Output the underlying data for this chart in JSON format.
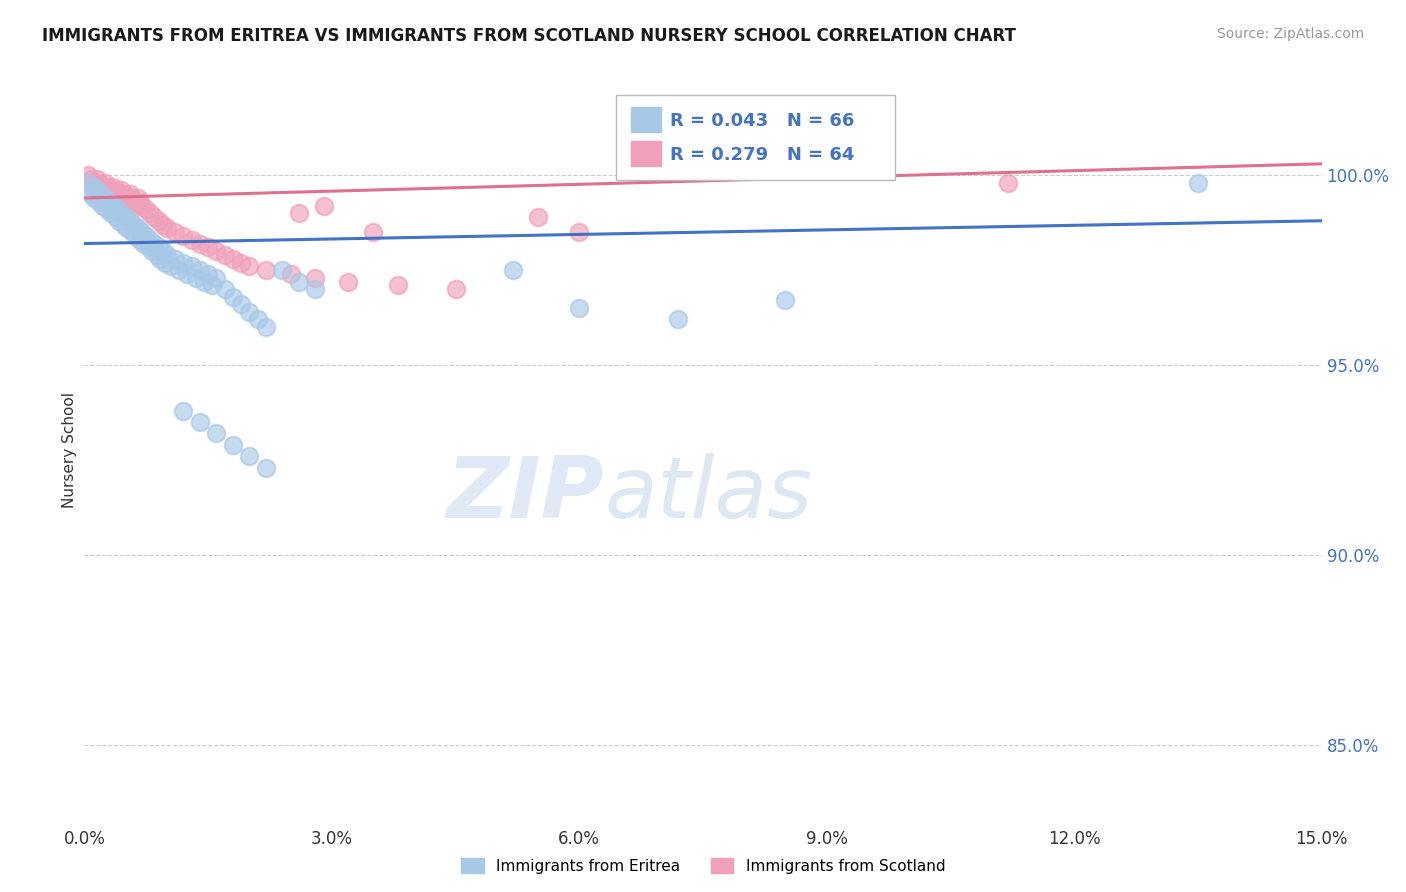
{
  "title": "IMMIGRANTS FROM ERITREA VS IMMIGRANTS FROM SCOTLAND NURSERY SCHOOL CORRELATION CHART",
  "source": "Source: ZipAtlas.com",
  "ylabel": "Nursery School",
  "xlim": [
    0.0,
    15.0
  ],
  "ylim": [
    83.0,
    102.5
  ],
  "yticks": [
    85.0,
    90.0,
    95.0,
    100.0
  ],
  "ytick_labels": [
    "85.0%",
    "90.0%",
    "95.0%",
    "100.0%"
  ],
  "xticks": [
    0.0,
    3.0,
    6.0,
    9.0,
    12.0,
    15.0
  ],
  "xtick_labels": [
    "0.0%",
    "3.0%",
    "6.0%",
    "9.0%",
    "12.0%",
    "15.0%"
  ],
  "blue_color": "#A8C8E8",
  "pink_color": "#F0A0B8",
  "blue_line_color": "#4472C4",
  "pink_line_color": "#E07090",
  "legend_blue_R": "0.043",
  "legend_blue_N": "66",
  "legend_pink_R": "0.279",
  "legend_pink_N": "64",
  "legend_label_blue": "Immigrants from Eritrea",
  "legend_label_pink": "Immigrants from Scotland",
  "watermark_ZIP": "ZIP",
  "watermark_atlas": "atlas",
  "blue_x": [
    0.05,
    0.08,
    0.1,
    0.12,
    0.15,
    0.18,
    0.2,
    0.22,
    0.25,
    0.28,
    0.3,
    0.32,
    0.35,
    0.38,
    0.4,
    0.42,
    0.45,
    0.48,
    0.5,
    0.52,
    0.55,
    0.58,
    0.6,
    0.62,
    0.65,
    0.68,
    0.7,
    0.72,
    0.75,
    0.78,
    0.8,
    0.82,
    0.85,
    0.88,
    0.9,
    0.92,
    0.95,
    0.98,
    1.0,
    1.05,
    1.1,
    1.15,
    1.2,
    1.25,
    1.3,
    1.35,
    1.4,
    1.45,
    1.5,
    1.55,
    1.6,
    1.7,
    1.8,
    1.9,
    2.0,
    2.1,
    2.2,
    2.4,
    2.6,
    2.8,
    1.2,
    1.4,
    1.6,
    1.8,
    2.0,
    2.2,
    5.2,
    6.0,
    7.2,
    8.5,
    13.5
  ],
  "blue_y": [
    99.8,
    99.5,
    99.7,
    99.4,
    99.6,
    99.3,
    99.5,
    99.2,
    99.4,
    99.1,
    99.3,
    99.0,
    99.2,
    98.9,
    99.1,
    98.8,
    99.0,
    98.7,
    98.9,
    98.6,
    98.8,
    98.5,
    98.7,
    98.4,
    98.6,
    98.3,
    98.5,
    98.2,
    98.4,
    98.1,
    98.3,
    98.0,
    98.2,
    97.9,
    98.1,
    97.8,
    98.0,
    97.7,
    97.9,
    97.6,
    97.8,
    97.5,
    97.7,
    97.4,
    97.6,
    97.3,
    97.5,
    97.2,
    97.4,
    97.1,
    97.3,
    97.0,
    96.8,
    96.6,
    96.4,
    96.2,
    96.0,
    97.5,
    97.2,
    97.0,
    93.8,
    93.5,
    93.2,
    92.9,
    92.6,
    92.3,
    97.5,
    96.5,
    96.2,
    96.7,
    99.8
  ],
  "pink_x": [
    0.05,
    0.08,
    0.1,
    0.12,
    0.15,
    0.18,
    0.2,
    0.22,
    0.25,
    0.28,
    0.3,
    0.32,
    0.35,
    0.38,
    0.4,
    0.42,
    0.45,
    0.48,
    0.5,
    0.52,
    0.55,
    0.58,
    0.6,
    0.62,
    0.65,
    0.68,
    0.7,
    0.75,
    0.8,
    0.85,
    0.9,
    0.95,
    1.0,
    1.1,
    1.2,
    1.3,
    1.4,
    1.5,
    1.6,
    1.7,
    1.8,
    1.9,
    2.0,
    2.2,
    2.5,
    2.8,
    3.2,
    3.8,
    4.5,
    2.6,
    2.9,
    3.5,
    5.5,
    6.0,
    11.2
  ],
  "pink_y": [
    100.0,
    99.9,
    99.8,
    99.7,
    99.9,
    99.8,
    99.7,
    99.6,
    99.8,
    99.7,
    99.6,
    99.5,
    99.7,
    99.6,
    99.5,
    99.4,
    99.6,
    99.5,
    99.4,
    99.3,
    99.5,
    99.4,
    99.3,
    99.2,
    99.4,
    99.3,
    99.2,
    99.1,
    99.0,
    98.9,
    98.8,
    98.7,
    98.6,
    98.5,
    98.4,
    98.3,
    98.2,
    98.1,
    98.0,
    97.9,
    97.8,
    97.7,
    97.6,
    97.5,
    97.4,
    97.3,
    97.2,
    97.1,
    97.0,
    99.0,
    99.2,
    98.5,
    98.9,
    98.5,
    99.8
  ]
}
